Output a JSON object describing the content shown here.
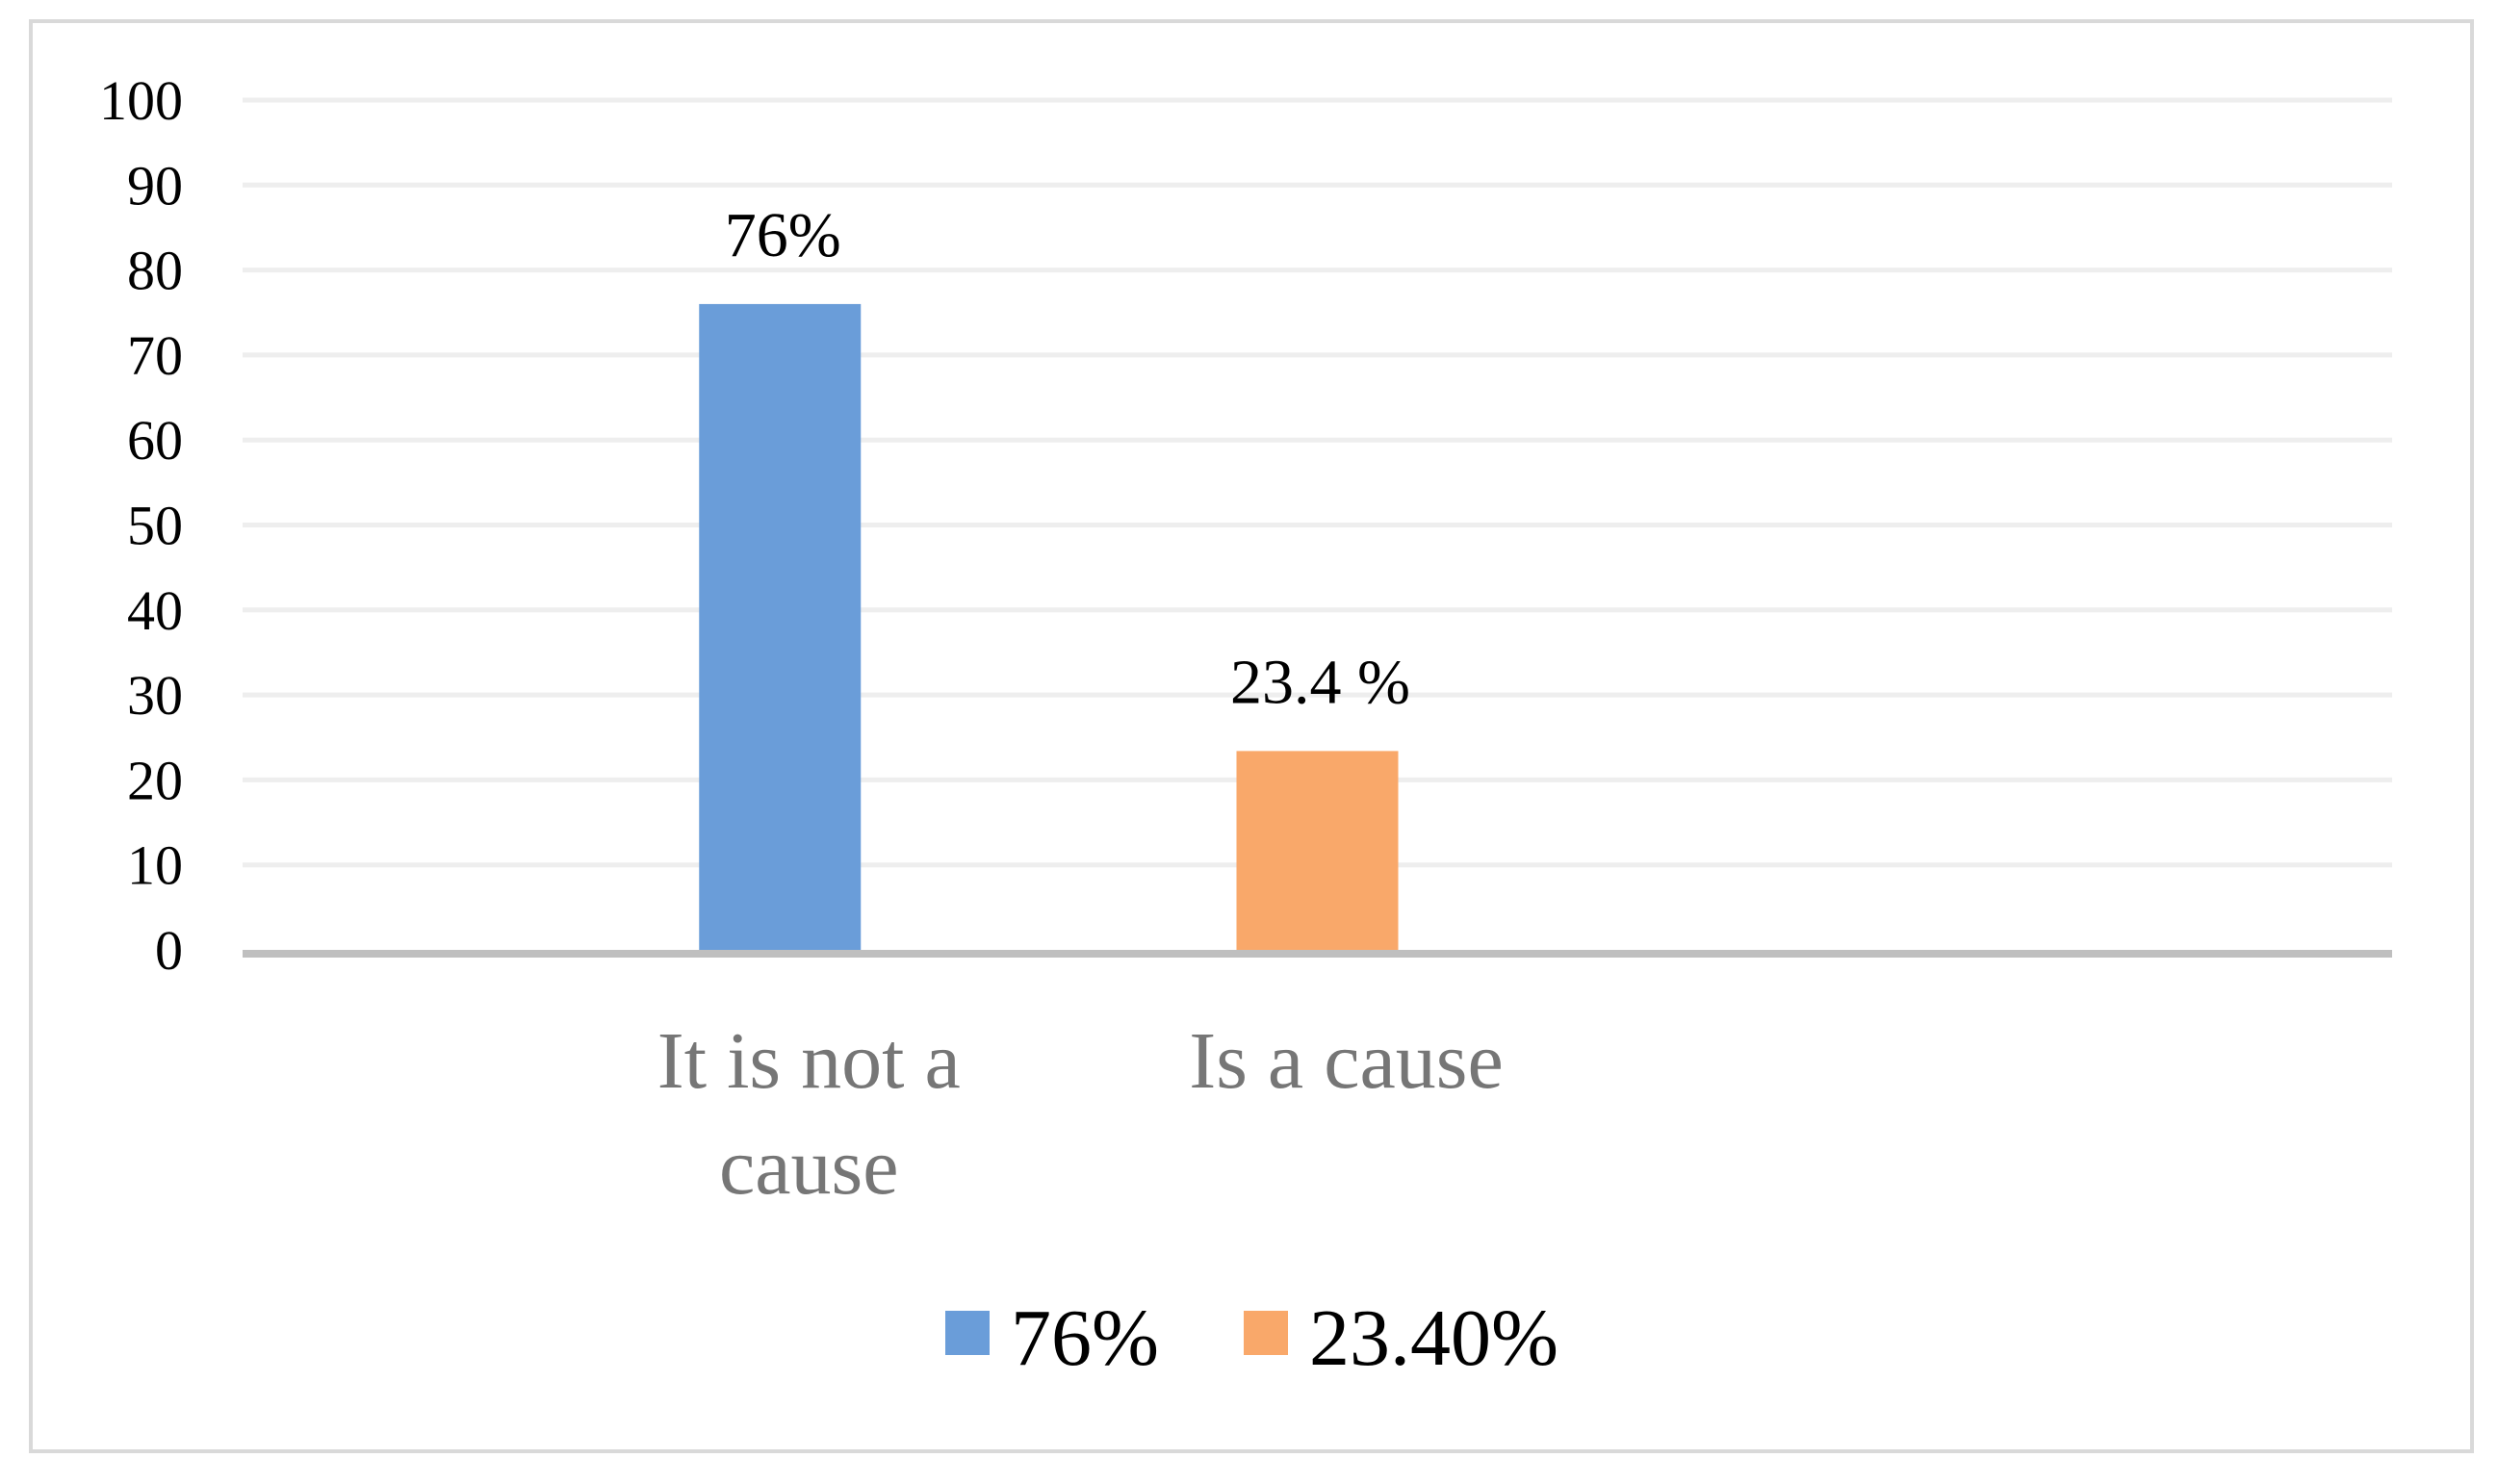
{
  "chart_data": {
    "type": "bar",
    "categories": [
      "It is not a cause",
      "Is a cause"
    ],
    "category_lines": [
      [
        "It is not a",
        "cause"
      ],
      [
        "Is a cause"
      ]
    ],
    "series": [
      {
        "name": "76%",
        "values": [
          76,
          null
        ],
        "color": "#6a9dd9",
        "data_label": "76%"
      },
      {
        "name": "23.40%",
        "values": [
          null,
          23.4
        ],
        "color": "#f9a86a",
        "data_label": "23.4 %"
      }
    ],
    "ylim": [
      0,
      100
    ],
    "yticks": [
      0,
      10,
      20,
      30,
      40,
      50,
      60,
      70,
      80,
      90,
      100
    ],
    "grid": true,
    "legend_position": "bottom",
    "colors": {
      "grid": "#eeeeee",
      "axis": "#bfbfbf",
      "frame": "#d9d9d9"
    }
  }
}
